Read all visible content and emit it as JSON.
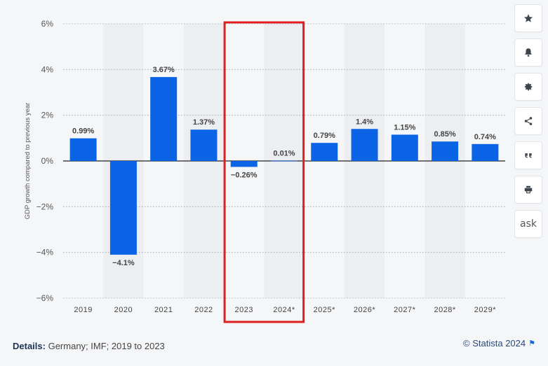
{
  "chart_data": {
    "type": "bar",
    "categories": [
      "2019",
      "2020",
      "2021",
      "2022",
      "2023",
      "2024*",
      "2025*",
      "2026*",
      "2027*",
      "2028*",
      "2029*"
    ],
    "values": [
      0.99,
      -4.1,
      3.67,
      1.37,
      -0.26,
      0.01,
      0.79,
      1.4,
      1.15,
      0.85,
      0.74
    ],
    "value_labels": [
      "0.99%",
      "−4.1%",
      "3.67%",
      "1.37%",
      "−0.26%",
      "0.01%",
      "0.79%",
      "1.4%",
      "1.15%",
      "0.85%",
      "0.74%"
    ],
    "ylim": [
      -6,
      6
    ],
    "yticks": [
      6,
      4,
      2,
      0,
      -2,
      -4,
      -6
    ],
    "ytick_labels": [
      "6%",
      "4%",
      "2%",
      "0%",
      "−2%",
      "−4%",
      "−6%"
    ],
    "ylabel": "GDP growth compared to previous year",
    "xlabel": "",
    "title": "",
    "grid": true,
    "bar_color": "#0b63e5",
    "highlight": {
      "categories": [
        "2023",
        "2024*"
      ],
      "color": "#e02020"
    }
  },
  "sidebar": {
    "buttons": [
      {
        "name": "favorite-star-button",
        "icon": "star-icon"
      },
      {
        "name": "notification-bell-button",
        "icon": "bell-icon"
      },
      {
        "name": "settings-gear-button",
        "icon": "gear-icon"
      },
      {
        "name": "share-button",
        "icon": "share-icon"
      },
      {
        "name": "cite-quote-button",
        "icon": "quote-icon"
      },
      {
        "name": "print-button",
        "icon": "printer-icon"
      },
      {
        "name": "ask-button",
        "icon": "ask-icon",
        "label": "ask"
      }
    ]
  },
  "footer": {
    "details_label": "Details:",
    "details_text": "Germany; IMF; 2019 to 2023",
    "copyright": "© Statista 2024"
  },
  "colors": {
    "background": "#f5f6f8",
    "band": "#eceef1",
    "accent": "#0b63e5"
  }
}
